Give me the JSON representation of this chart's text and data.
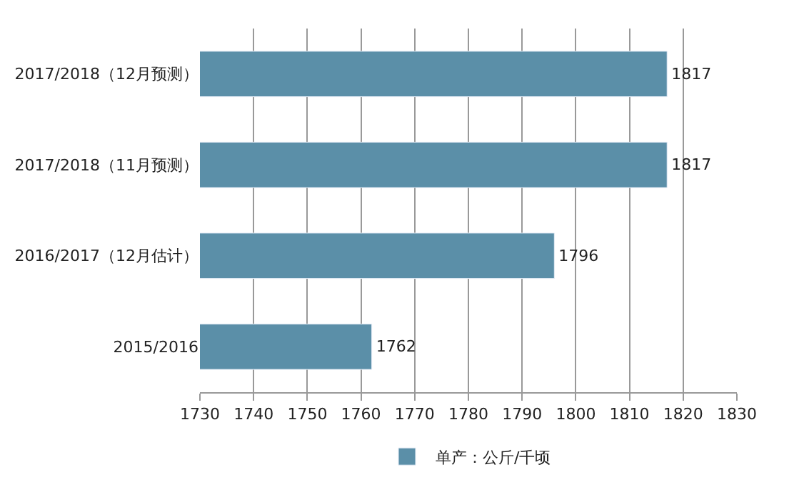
{
  "chart_data": {
    "type": "bar",
    "orientation": "horizontal",
    "categories": [
      "2017/2018（12月预测）",
      "2017/2018（11月预测）",
      "2016/2017（12月估计）",
      "2015/2016"
    ],
    "series": [
      {
        "name": "单产：公斤/千顷",
        "color": "#5b8fa8",
        "values": [
          1817,
          1817,
          1796,
          1762
        ]
      }
    ],
    "xlim": [
      1730,
      1830
    ],
    "xticks": [
      1730,
      1740,
      1750,
      1760,
      1770,
      1780,
      1790,
      1800,
      1810,
      1820,
      1830
    ],
    "grid": "x",
    "legend": "bottom",
    "data_labels": true
  }
}
